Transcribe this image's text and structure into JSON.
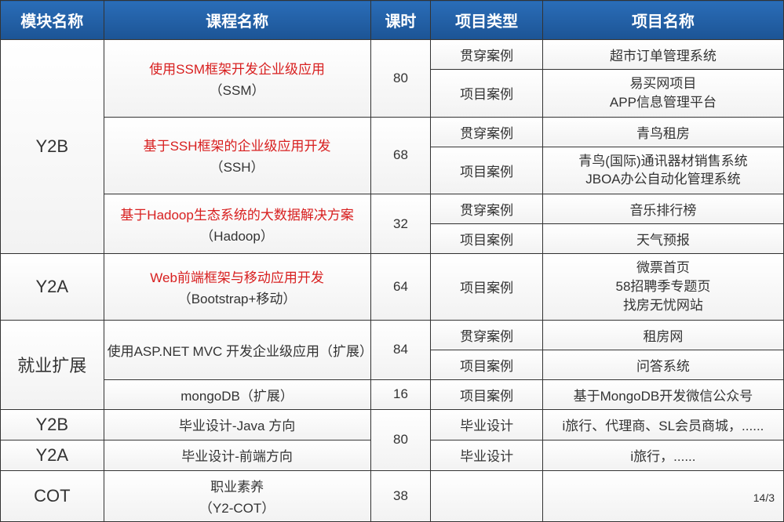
{
  "headers": {
    "module": "模块名称",
    "course": "课程名称",
    "hours": "课时",
    "type": "项目类型",
    "project": "项目名称"
  },
  "modules": {
    "y2b": "Y2B",
    "y2a": "Y2A",
    "jiuye": "就业扩展",
    "y2b2": "Y2B",
    "y2a2": "Y2A",
    "cot": "COT"
  },
  "courses": {
    "ssm_title": "使用SSM框架开发企业级应用",
    "ssm_sub": "（SSM）",
    "ssh_title": "基于SSH框架的企业级应用开发",
    "ssh_sub": "（SSH）",
    "hadoop_title": "基于Hadoop生态系统的大数据解决方案",
    "hadoop_sub": "（Hadoop）",
    "web_title": "Web前端框架与移动应用开发",
    "web_sub": "（Bootstrap+移动）",
    "aspnet": "使用ASP.NET MVC 开发企业级应用（扩展）",
    "mongodb": "mongoDB（扩展）",
    "java_grad": "毕业设计-Java 方向",
    "front_grad": "毕业设计-前端方向",
    "cot_title": "职业素养",
    "cot_sub": "（Y2-COT）"
  },
  "hours": {
    "ssm": "80",
    "ssh": "68",
    "hadoop": "32",
    "web": "64",
    "aspnet": "84",
    "mongodb": "16",
    "grad": "80",
    "cot": "38"
  },
  "types": {
    "guanchuan": "贯穿案例",
    "xiangmu": "项目案例",
    "biye": "毕业设计"
  },
  "projects": {
    "ssm1": "超市订单管理系统",
    "ssm2a": "易买网项目",
    "ssm2b": "APP信息管理平台",
    "ssh1": "青鸟租房",
    "ssh2a": "青鸟(国际)通讯器材销售系统",
    "ssh2b": "JBOA办公自动化管理系统",
    "hadoop1": "音乐排行榜",
    "hadoop2": "天气预报",
    "web1": "微票首页",
    "web2": "58招聘季专题页",
    "web3": "找房无忧网站",
    "aspnet1": "租房网",
    "aspnet2": "问答系统",
    "mongodb1": "基于MongoDB开发微信公众号",
    "java_grad": "i旅行、代理商、SL会员商城，......",
    "front_grad": "i旅行，......"
  },
  "page": "14/3"
}
